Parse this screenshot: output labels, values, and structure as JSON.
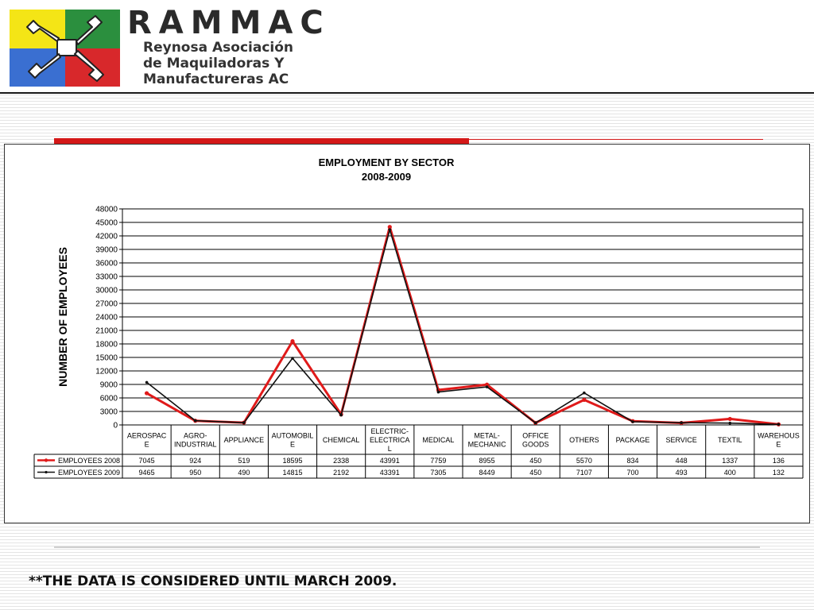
{
  "logo": {
    "title": "RAMMAC",
    "subtitle_lines": [
      "Reynosa Asociación",
      "de Maquiladoras Y",
      "Manufactureras AC"
    ],
    "quadrant_colors": [
      "#f4e516",
      "#2b8f3e",
      "#3a6fd1",
      "#d8282b"
    ]
  },
  "footnote": "**THE DATA IS CONSIDERED UNTIL MARCH 2009.",
  "colors": {
    "accent_red": "#d41818",
    "series_2008": "#e01a1a",
    "series_2009": "#111111"
  },
  "chart_data": {
    "type": "line",
    "title": "EMPLOYMENT BY SECTOR",
    "subtitle": "2008-2009",
    "ylabel": "NUMBER OF EMPLOYEES",
    "ylim": [
      0,
      48000
    ],
    "yticks": [
      "48000",
      "45000",
      "42000",
      "39000",
      "36000",
      "33000",
      "30000",
      "27000",
      "24000",
      "21000",
      "18000",
      "15000",
      "12000",
      "9000",
      "6000",
      "3000",
      "0"
    ],
    "grid": true,
    "legend": "data-table",
    "categories": [
      [
        "AEROSPAC",
        "E"
      ],
      [
        "AGRO-",
        "INDUSTRIAL"
      ],
      [
        "APPLIANCE"
      ],
      [
        "AUTOMOBIL",
        "E"
      ],
      [
        "CHEMICAL"
      ],
      [
        "ELECTRIC-",
        "ELECTRICA",
        "L"
      ],
      [
        "MEDICAL"
      ],
      [
        "METAL-",
        "MECHANIC"
      ],
      [
        "OFFICE",
        "GOODS"
      ],
      [
        "OTHERS"
      ],
      [
        "PACKAGE"
      ],
      [
        "SERVICE"
      ],
      [
        "TEXTIL"
      ],
      [
        "WAREHOUS",
        "E"
      ]
    ],
    "series": [
      {
        "name": "EMPLOYEES 2008",
        "color": "#e01a1a",
        "values": [
          7045,
          924,
          519,
          18595,
          2338,
          43991,
          7759,
          8955,
          450,
          5570,
          834,
          448,
          1337,
          136
        ]
      },
      {
        "name": "EMPLOYEES 2009",
        "color": "#111111",
        "values": [
          9465,
          950,
          490,
          14815,
          2192,
          43391,
          7305,
          8449,
          450,
          7107,
          700,
          493,
          400,
          132
        ]
      }
    ]
  }
}
